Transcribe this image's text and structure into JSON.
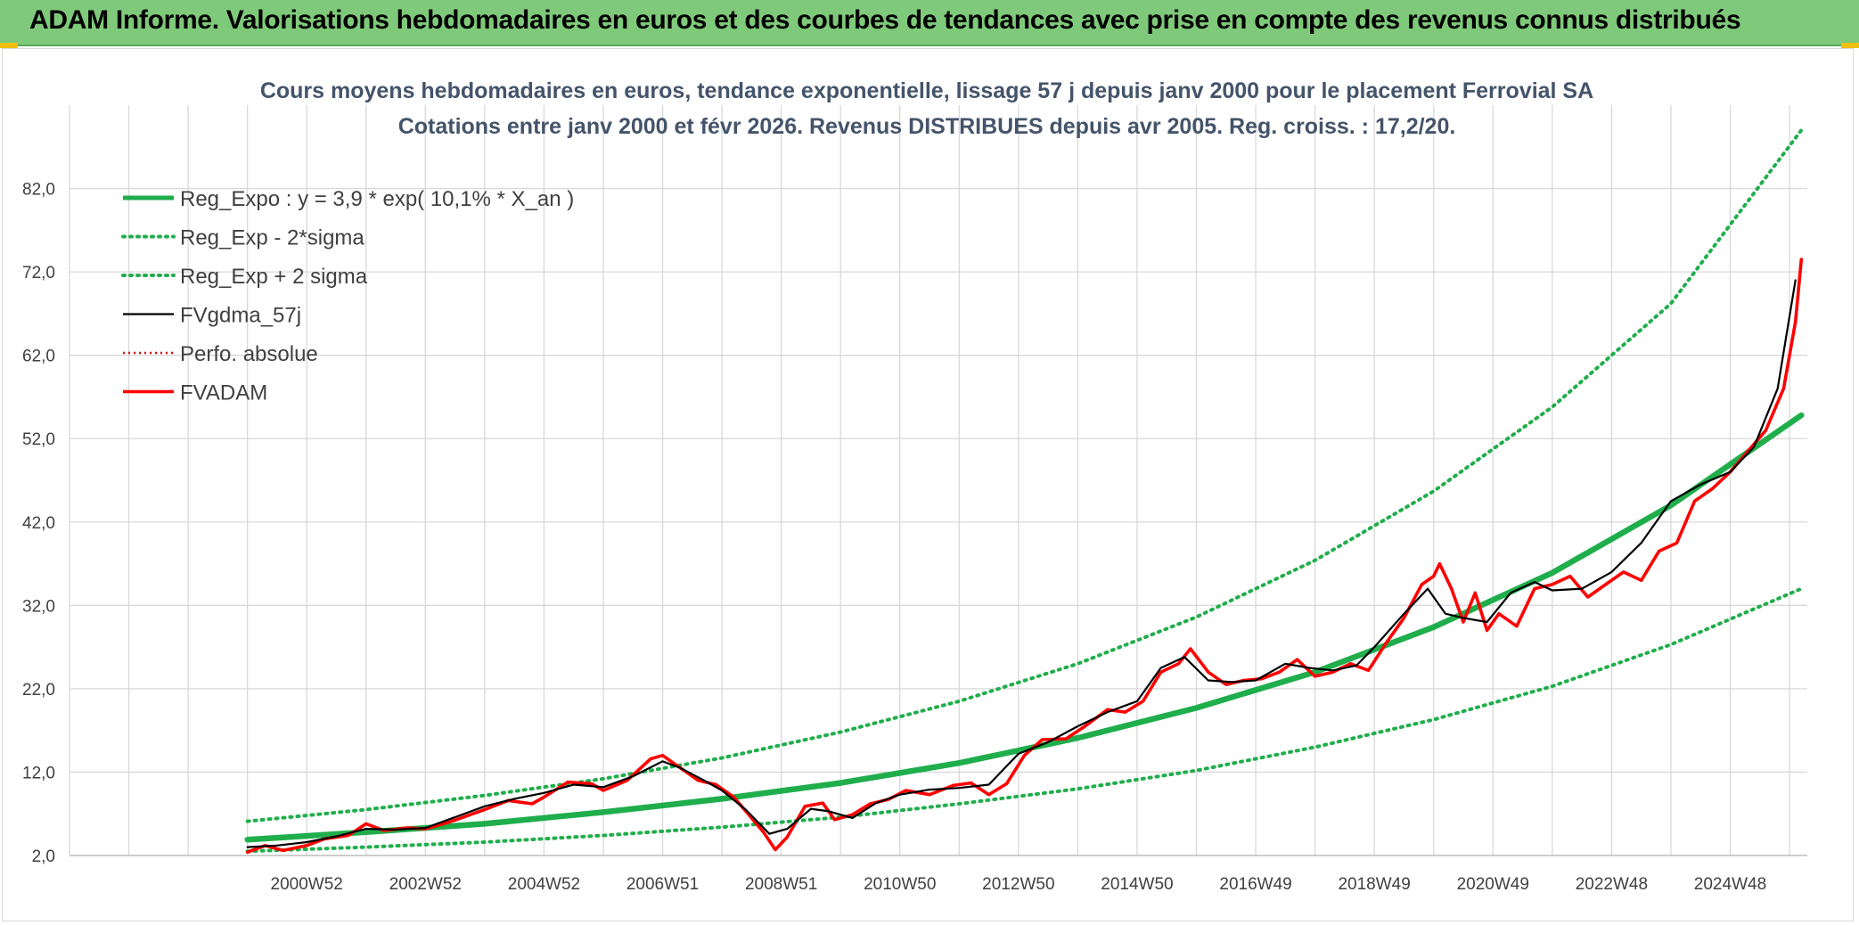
{
  "header": {
    "title": "ADAM Informe. Valorisations hebdomadaires en euros et des courbes de tendances avec prise en compte des revenus connus distribués"
  },
  "colors": {
    "banner": "#7fc97a",
    "trend": "#1fae4b",
    "sigma": "#1fae4b",
    "smooth": "#000000",
    "perf": "#e00000",
    "price": "#ff0000",
    "grid": "#d9d9d9"
  },
  "chart_data": {
    "type": "line",
    "title": "Cours moyens hebdomadaires en euros, tendance exponentielle, lissage 57 j depuis janv 2000 pour le placement Ferrovial SA",
    "subtitle": "Cotations entre janv 2000 et févr 2026. Revenus DISTRIBUES depuis avr 2005. Reg. croiss. : 17,2/20.",
    "xlabel": "",
    "ylabel": "",
    "ylim": [
      2,
      92
    ],
    "yticks": [
      "2,0",
      "12,0",
      "22,0",
      "32,0",
      "42,0",
      "52,0",
      "62,0",
      "72,0",
      "82,0"
    ],
    "xticks": [
      {
        "label": "2000W52",
        "year": 2001.0
      },
      {
        "label": "2002W52",
        "year": 2003.0
      },
      {
        "label": "2004W52",
        "year": 2005.0
      },
      {
        "label": "2006W51",
        "year": 2007.0
      },
      {
        "label": "2008W51",
        "year": 2009.0
      },
      {
        "label": "2010W50",
        "year": 2011.0
      },
      {
        "label": "2012W50",
        "year": 2013.0
      },
      {
        "label": "2014W50",
        "year": 2015.0
      },
      {
        "label": "2016W49",
        "year": 2017.0
      },
      {
        "label": "2018W49",
        "year": 2019.0
      },
      {
        "label": "2020W49",
        "year": 2021.0
      },
      {
        "label": "2022W48",
        "year": 2023.0
      },
      {
        "label": "2024W48",
        "year": 2025.0
      }
    ],
    "x_range": [
      1997.0,
      2026.3
    ],
    "grid": true,
    "legend_position": "top-left",
    "series": [
      {
        "name": "Reg_Expo : y = 3,9 * exp( 10,1% *  X_an )",
        "style": "thick",
        "x": [
          2000.0,
          2002.0,
          2004.0,
          2006.0,
          2008.0,
          2010.0,
          2012.0,
          2014.0,
          2016.0,
          2018.0,
          2020.0,
          2022.0,
          2024.0,
          2026.2
        ],
        "y": [
          3.9,
          4.8,
          5.8,
          7.2,
          8.8,
          10.7,
          13.1,
          16.1,
          19.7,
          24.0,
          29.4,
          35.9,
          44.0,
          54.8
        ]
      },
      {
        "name": "Reg_Exp - 2*sigma",
        "style": "dotted",
        "x": [
          2000.0,
          2002.0,
          2004.0,
          2006.0,
          2008.0,
          2010.0,
          2012.0,
          2014.0,
          2016.0,
          2018.0,
          2020.0,
          2022.0,
          2024.0,
          2026.2
        ],
        "y": [
          2.5,
          3.0,
          3.6,
          4.4,
          5.4,
          6.6,
          8.2,
          10.0,
          12.2,
          15.0,
          18.3,
          22.3,
          27.3,
          34.0
        ]
      },
      {
        "name": "Reg_Exp + 2 sigma",
        "style": "dotted",
        "x": [
          2000.0,
          2002.0,
          2004.0,
          2006.0,
          2008.0,
          2010.0,
          2012.0,
          2014.0,
          2016.0,
          2018.0,
          2020.0,
          2022.0,
          2024.0,
          2026.2
        ],
        "y": [
          6.1,
          7.5,
          9.2,
          11.2,
          13.7,
          16.8,
          20.5,
          25.0,
          30.6,
          37.4,
          45.7,
          55.8,
          68.2,
          89.0
        ]
      },
      {
        "name": "FVgdma_57j",
        "style": "smooth",
        "x": [
          2000.0,
          2000.5,
          2001.0,
          2001.5,
          2002.0,
          2002.5,
          2003.0,
          2003.5,
          2004.0,
          2004.5,
          2005.0,
          2005.5,
          2006.0,
          2006.5,
          2007.0,
          2007.3,
          2007.7,
          2008.0,
          2008.4,
          2008.8,
          2009.1,
          2009.5,
          2009.8,
          2010.2,
          2010.6,
          2011.0,
          2011.5,
          2012.0,
          2012.5,
          2013.0,
          2013.5,
          2014.0,
          2014.5,
          2015.0,
          2015.4,
          2015.8,
          2016.2,
          2016.6,
          2017.0,
          2017.5,
          2017.9,
          2018.3,
          2018.7,
          2019.0,
          2019.5,
          2019.9,
          2020.2,
          2020.5,
          2020.9,
          2021.3,
          2021.7,
          2022.0,
          2022.5,
          2023.0,
          2023.5,
          2024.0,
          2024.5,
          2025.0,
          2025.4,
          2025.8,
          2026.1
        ],
        "y": [
          3.0,
          3.2,
          3.6,
          4.3,
          5.2,
          5.1,
          5.3,
          6.6,
          7.9,
          8.8,
          9.5,
          10.5,
          10.2,
          11.5,
          13.3,
          12.5,
          11.0,
          9.8,
          7.5,
          4.6,
          5.2,
          7.6,
          7.3,
          6.5,
          8.3,
          9.3,
          9.9,
          10.1,
          10.5,
          14.2,
          15.6,
          17.5,
          19.2,
          20.5,
          24.5,
          25.8,
          23.0,
          22.8,
          23.0,
          25.0,
          24.5,
          24.2,
          24.8,
          27.0,
          31.0,
          34.0,
          31.0,
          30.5,
          30.0,
          33.5,
          34.8,
          33.8,
          34.0,
          36.0,
          39.5,
          44.5,
          46.5,
          48.0,
          51.0,
          58.0,
          71.0
        ]
      },
      {
        "name": "Perfo. absolue",
        "style": "dotted-red",
        "x": [],
        "y": []
      },
      {
        "name": "FVADAM",
        "style": "thick-red",
        "x": [
          2000.0,
          2000.3,
          2000.6,
          2001.0,
          2001.3,
          2001.7,
          2002.0,
          2002.3,
          2002.7,
          2003.0,
          2003.4,
          2003.8,
          2004.0,
          2004.4,
          2004.8,
          2005.0,
          2005.4,
          2005.8,
          2006.0,
          2006.4,
          2006.8,
          2007.0,
          2007.3,
          2007.6,
          2007.9,
          2008.2,
          2008.5,
          2008.7,
          2008.9,
          2009.1,
          2009.4,
          2009.7,
          2009.9,
          2010.2,
          2010.5,
          2010.8,
          2011.1,
          2011.5,
          2011.9,
          2012.2,
          2012.5,
          2012.8,
          2013.1,
          2013.4,
          2013.8,
          2014.1,
          2014.5,
          2014.8,
          2015.1,
          2015.4,
          2015.7,
          2015.9,
          2016.2,
          2016.5,
          2016.8,
          2017.1,
          2017.4,
          2017.7,
          2018.0,
          2018.3,
          2018.6,
          2018.9,
          2019.2,
          2019.5,
          2019.8,
          2020.0,
          2020.1,
          2020.3,
          2020.5,
          2020.7,
          2020.9,
          2021.1,
          2021.4,
          2021.7,
          2022.0,
          2022.3,
          2022.6,
          2022.9,
          2023.2,
          2023.5,
          2023.8,
          2024.1,
          2024.4,
          2024.7,
          2025.0,
          2025.3,
          2025.6,
          2025.9,
          2026.1,
          2026.2
        ],
        "y": [
          2.4,
          3.2,
          2.6,
          3.2,
          4.0,
          4.4,
          5.8,
          5.0,
          5.3,
          5.2,
          6.0,
          7.0,
          7.5,
          8.6,
          8.2,
          9.0,
          10.8,
          10.6,
          9.8,
          11.0,
          13.6,
          14.0,
          12.5,
          11.0,
          10.5,
          9.0,
          6.5,
          4.8,
          2.7,
          4.2,
          7.9,
          8.3,
          6.3,
          6.9,
          8.2,
          8.7,
          9.8,
          9.3,
          10.4,
          10.7,
          9.3,
          10.6,
          14.0,
          15.9,
          16.0,
          17.4,
          19.5,
          19.2,
          20.5,
          24.0,
          25.0,
          26.8,
          24.0,
          22.5,
          23.0,
          23.2,
          24.0,
          25.5,
          23.5,
          24.0,
          25.0,
          24.2,
          27.5,
          30.5,
          34.5,
          35.5,
          37.0,
          34.0,
          30.0,
          33.5,
          29.0,
          31.0,
          29.5,
          34.0,
          34.5,
          35.5,
          33.0,
          34.5,
          36.0,
          35.0,
          38.5,
          39.5,
          44.5,
          46.0,
          48.0,
          50.5,
          53.0,
          58.0,
          66.0,
          73.5
        ]
      }
    ]
  }
}
